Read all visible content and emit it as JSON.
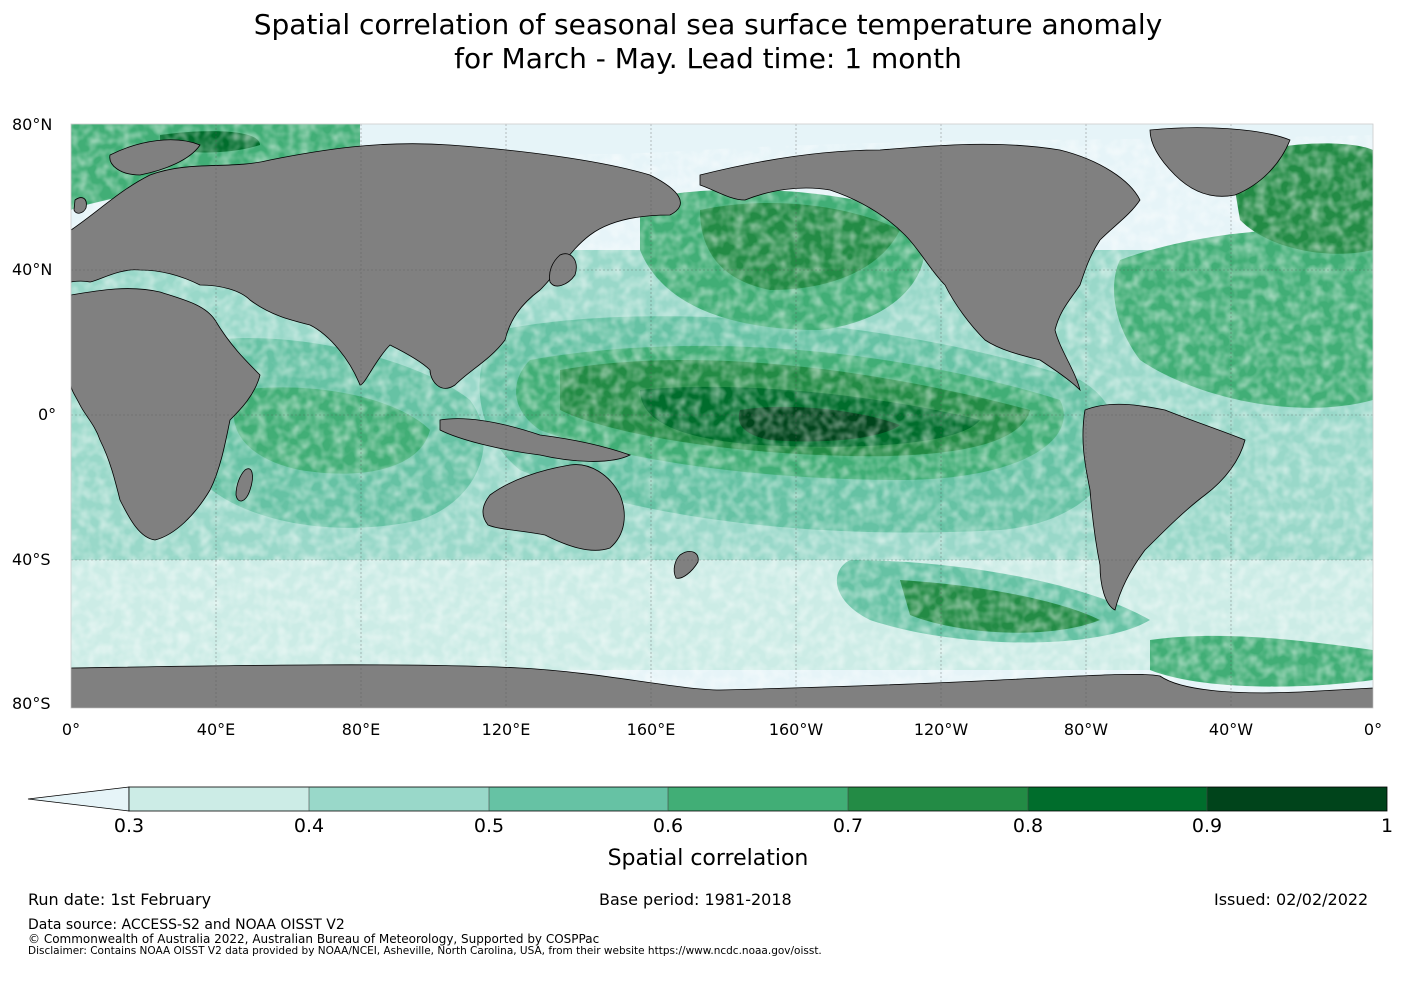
{
  "title": {
    "line1": "Spatial correlation of seasonal sea surface temperature anomaly",
    "line2": "for March - May. Lead time: 1 month"
  },
  "map": {
    "lat_labels": [
      "80°N",
      "40°N",
      "0°",
      "40°S",
      "80°S"
    ],
    "lon_labels": [
      "0°",
      "40°E",
      "80°E",
      "120°E",
      "160°E",
      "160°W",
      "120°W",
      "80°W",
      "40°W",
      "0°"
    ],
    "colors": {
      "land": "#808080",
      "below_min": "#e6f4f8",
      "c1": "#ccece6",
      "c2": "#99d8c9",
      "c3": "#66c2a4",
      "c4": "#41ae76",
      "c5": "#238b45",
      "c6": "#006d2c",
      "c7": "#00441b"
    }
  },
  "colorbar": {
    "ticks": [
      "0.3",
      "0.4",
      "0.5",
      "0.6",
      "0.7",
      "0.8",
      "0.9",
      "1"
    ],
    "label": "Spatial correlation"
  },
  "footer": {
    "run_date": "Run date: 1st February",
    "base_period": "Base period: 1981-2018",
    "issued": "Issued: 02/02/2022",
    "data_source": "Data source: ACCESS-S2 and NOAA OISST V2",
    "copyright": "© Commonwealth of Australia 2022, Australian Bureau of Meteorology, Supported by COSPPac",
    "disclaimer": "Disclaimer: Contains NOAA OISST V2 data provided by NOAA/NCEI, Asheville, North Carolina, USA, from their website https://www.ncdc.noaa.gov/oisst."
  }
}
